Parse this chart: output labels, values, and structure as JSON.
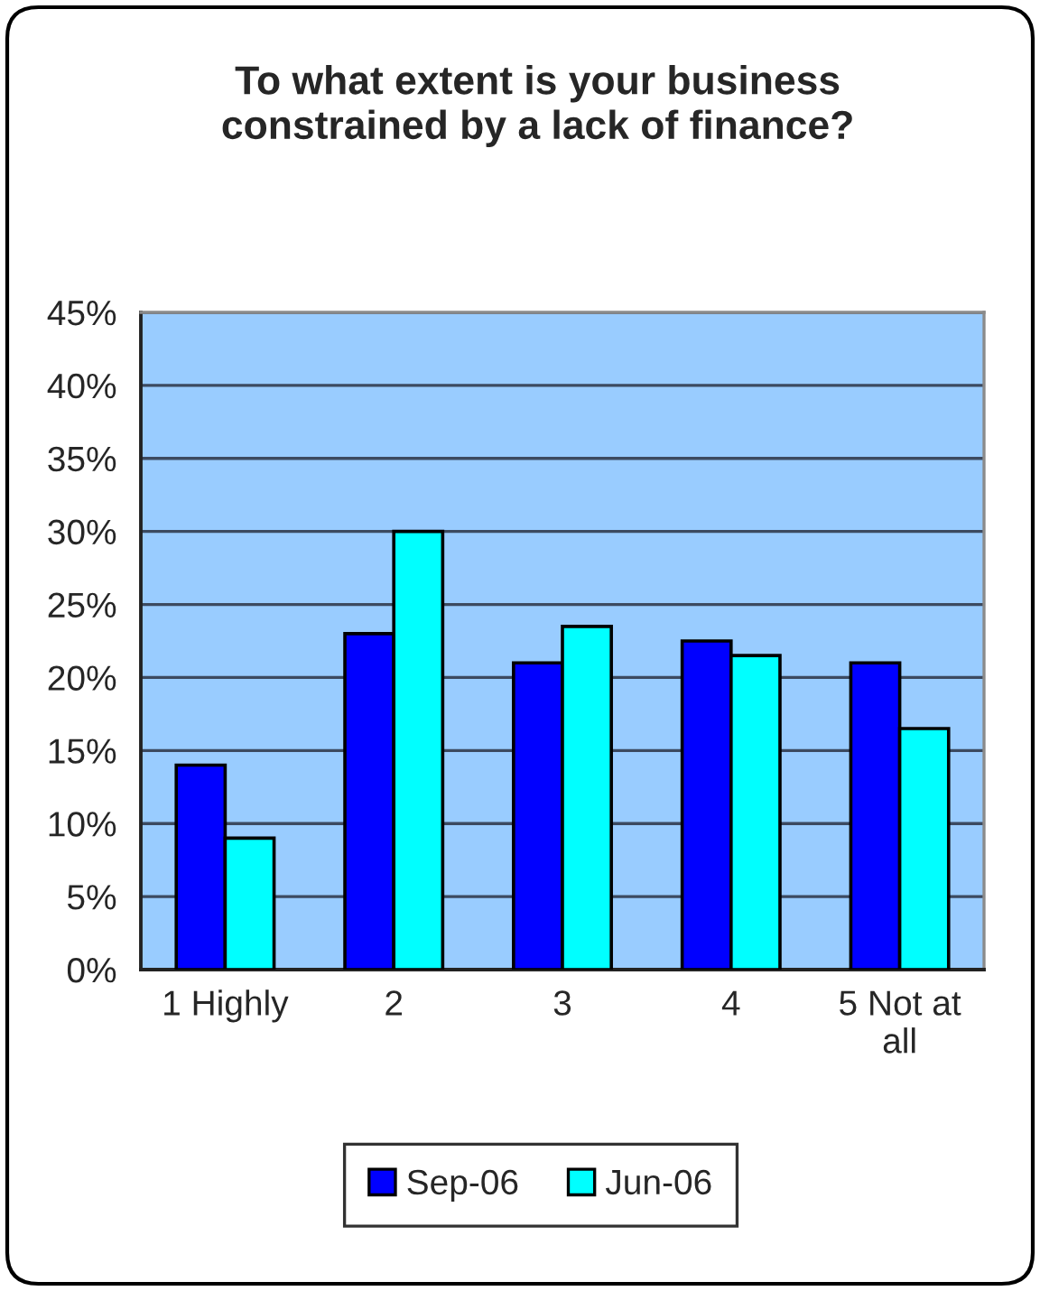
{
  "chart_data": {
    "type": "bar",
    "title": "To what extent is your business constrained by a lack of finance?",
    "categories": [
      "1 Highly",
      "2",
      "3",
      "4",
      "5 Not at all"
    ],
    "series": [
      {
        "name": "Sep-06",
        "color": "#0000ff",
        "values": [
          14,
          23,
          21,
          22.5,
          21
        ]
      },
      {
        "name": "Jun-06",
        "color": "#00ffff",
        "values": [
          9,
          30,
          23.5,
          21.5,
          16.5
        ]
      }
    ],
    "ylim": [
      0,
      45
    ],
    "yticks": [
      {
        "value": 0,
        "label": "0%"
      },
      {
        "value": 5,
        "label": "5%"
      },
      {
        "value": 10,
        "label": "10%"
      },
      {
        "value": 15,
        "label": "15%"
      },
      {
        "value": 20,
        "label": "20%"
      },
      {
        "value": 25,
        "label": "25%"
      },
      {
        "value": 30,
        "label": "30%"
      },
      {
        "value": 35,
        "label": "35%"
      },
      {
        "value": 40,
        "label": "40%"
      },
      {
        "value": 45,
        "label": "45%"
      }
    ],
    "grid": "y",
    "legend": "bottom"
  }
}
